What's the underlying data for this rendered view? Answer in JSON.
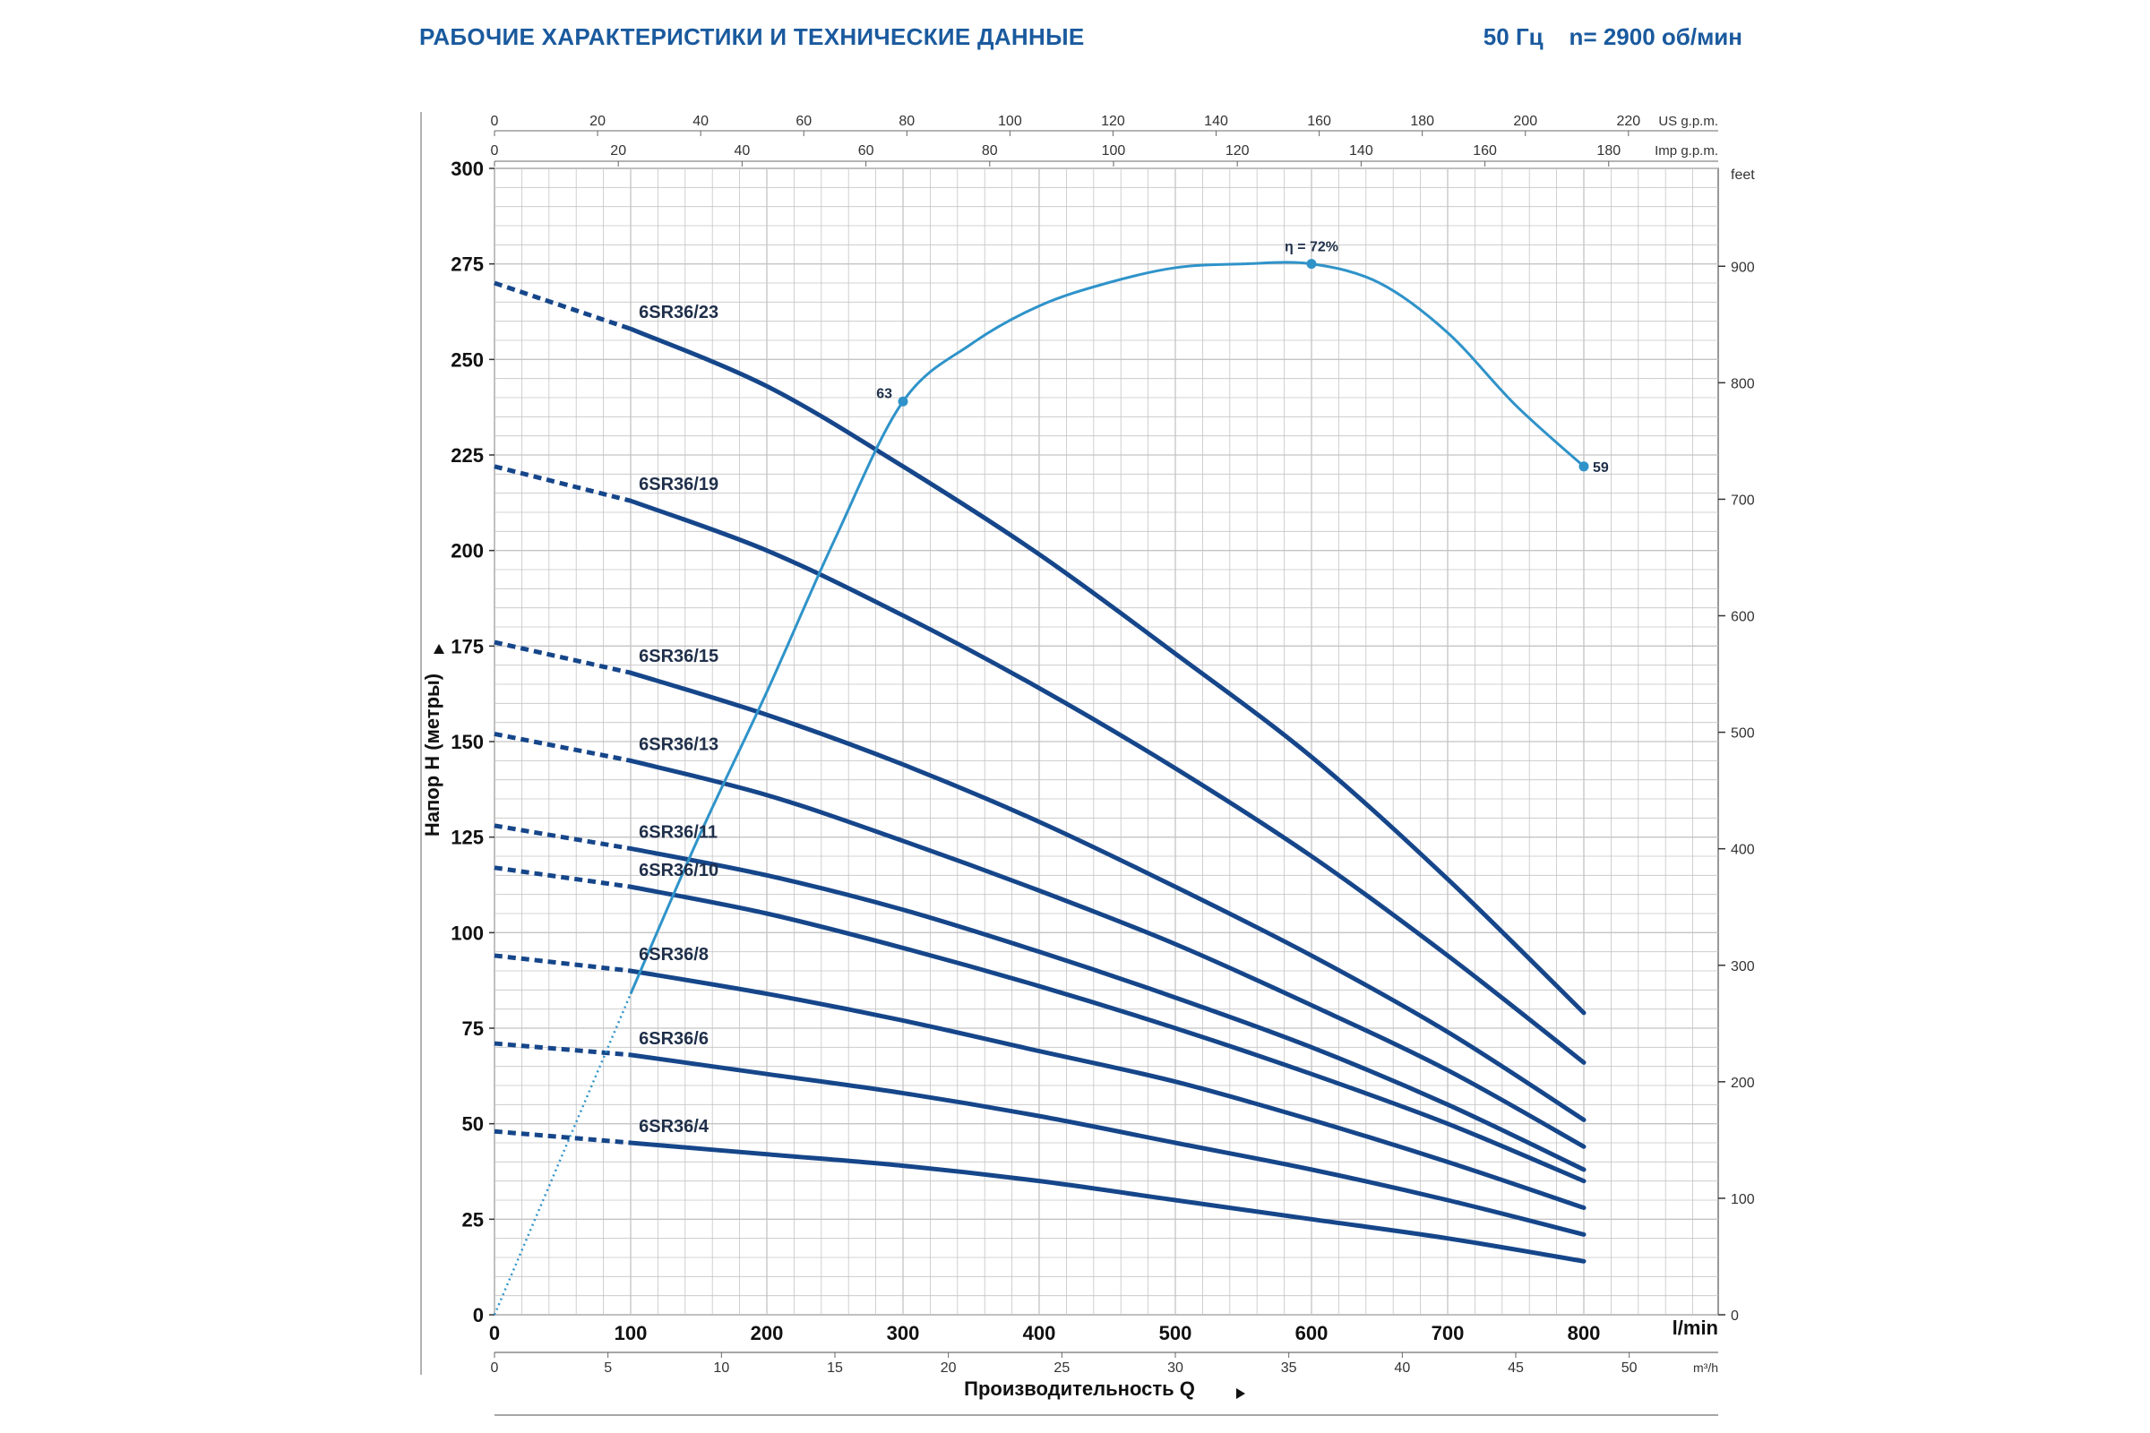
{
  "header": {
    "title": "РАБОЧИЕ ХАРАКТЕРИСТИКИ И ТЕХНИЧЕСКИЕ ДАННЫЕ",
    "spec": "50 Гц    n= 2900 об/мин"
  },
  "colors": {
    "curve": "#16468a",
    "efficiency": "#2f93c9",
    "grid": "#c4c4c4",
    "title": "#1a5a9e"
  },
  "chart_data": {
    "type": "line",
    "x": {
      "label": "Производительность Q",
      "unit": "l/min",
      "range": [
        0,
        900
      ],
      "ticks": [
        0,
        100,
        200,
        300,
        400,
        500,
        600,
        700,
        800
      ]
    },
    "x_secondary": [
      {
        "unit": "m³/h",
        "range": [
          0,
          54
        ],
        "ticks": [
          0,
          5,
          10,
          15,
          20,
          25,
          30,
          35,
          40,
          45,
          50
        ]
      },
      {
        "unit": "US g.p.m.",
        "range": [
          0,
          237.8
        ],
        "ticks": [
          0,
          20,
          40,
          60,
          80,
          100,
          120,
          140,
          160,
          180,
          200,
          220
        ]
      },
      {
        "unit": "Imp g.p.m.",
        "range": [
          0,
          198
        ],
        "ticks": [
          0,
          20,
          40,
          60,
          80,
          100,
          120,
          140,
          160,
          180
        ]
      }
    ],
    "y": {
      "label": "Напор H (метры)",
      "unit": "m",
      "range": [
        0,
        300
      ],
      "ticks": [
        0,
        25,
        50,
        75,
        100,
        125,
        150,
        175,
        200,
        225,
        250,
        275,
        300
      ]
    },
    "y_secondary": {
      "unit": "feet",
      "range": [
        0,
        984
      ],
      "ticks": [
        0,
        100,
        200,
        300,
        400,
        500,
        600,
        700,
        800,
        900
      ]
    },
    "grid": true,
    "series": [
      {
        "name": "6SR36/23",
        "dashed_until": 100,
        "x": [
          0,
          100,
          200,
          300,
          400,
          500,
          600,
          700,
          800
        ],
        "y": [
          270,
          258,
          243,
          222,
          199,
          173,
          146,
          114,
          79
        ]
      },
      {
        "name": "6SR36/19",
        "dashed_until": 100,
        "x": [
          0,
          100,
          200,
          300,
          400,
          500,
          600,
          700,
          800
        ],
        "y": [
          222,
          213,
          200,
          183,
          164,
          143,
          120,
          94,
          66
        ]
      },
      {
        "name": "6SR36/15",
        "dashed_until": 100,
        "x": [
          0,
          100,
          200,
          300,
          400,
          500,
          600,
          700,
          800
        ],
        "y": [
          176,
          168,
          157,
          144,
          129,
          112,
          94,
          74,
          51
        ]
      },
      {
        "name": "6SR36/13",
        "dashed_until": 100,
        "x": [
          0,
          100,
          200,
          300,
          400,
          500,
          600,
          700,
          800
        ],
        "y": [
          152,
          145,
          136,
          124,
          111,
          97,
          81,
          64,
          44
        ]
      },
      {
        "name": "6SR36/11",
        "dashed_until": 100,
        "x": [
          0,
          100,
          200,
          300,
          400,
          500,
          600,
          700,
          800
        ],
        "y": [
          128,
          122,
          115,
          106,
          95,
          83,
          70,
          55,
          38
        ]
      },
      {
        "name": "6SR36/10",
        "dashed_until": 100,
        "x": [
          0,
          100,
          200,
          300,
          400,
          500,
          600,
          700,
          800
        ],
        "y": [
          117,
          112,
          105,
          96,
          86,
          75,
          63,
          50,
          35
        ]
      },
      {
        "name": "6SR36/8",
        "dashed_until": 100,
        "x": [
          0,
          100,
          200,
          300,
          400,
          500,
          600,
          700,
          800
        ],
        "y": [
          94,
          90,
          84,
          77,
          69,
          61,
          51,
          40,
          28
        ]
      },
      {
        "name": "6SR36/6",
        "dashed_until": 100,
        "x": [
          0,
          100,
          200,
          300,
          400,
          500,
          600,
          700,
          800
        ],
        "y": [
          71,
          68,
          63,
          58,
          52,
          45,
          38,
          30,
          21
        ]
      },
      {
        "name": "6SR36/4",
        "dashed_until": 100,
        "x": [
          0,
          100,
          200,
          300,
          400,
          500,
          600,
          700,
          800
        ],
        "y": [
          48,
          45,
          42,
          39,
          35,
          30,
          25,
          20,
          14
        ]
      }
    ],
    "efficiency": {
      "label": "η = 72%",
      "dashed_until": 100,
      "x": [
        0,
        50,
        100,
        150,
        200,
        250,
        300,
        350,
        400,
        450,
        500,
        550,
        600,
        650,
        700,
        750,
        800
      ],
      "y": [
        0,
        42,
        84,
        125,
        163,
        203,
        239,
        254,
        264,
        270,
        274,
        275,
        275,
        270,
        257,
        238,
        222
      ],
      "points": [
        {
          "label": "63",
          "x": 300,
          "y": 239
        },
        {
          "label": "η = 72%",
          "x": 600,
          "y": 275
        },
        {
          "label": "59",
          "x": 800,
          "y": 222
        }
      ]
    }
  }
}
